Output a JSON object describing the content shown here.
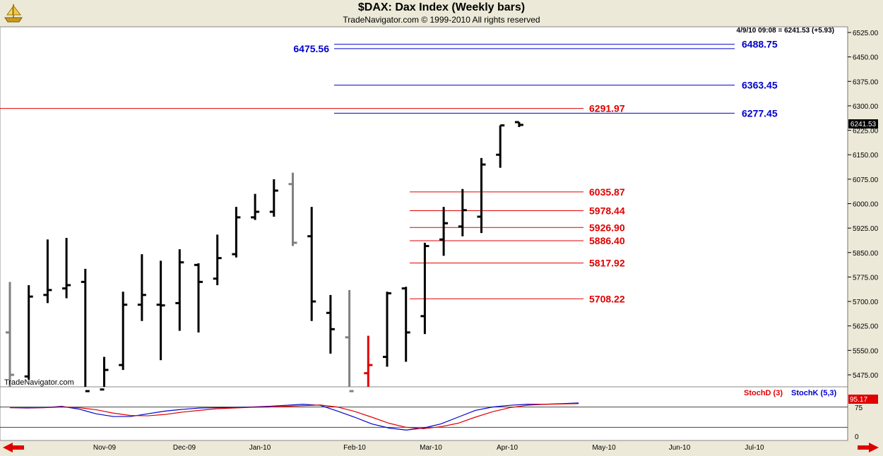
{
  "header": {
    "title": "$DAX:  Dax Index  (Weekly bars)",
    "subtitle": "TradeNavigator.com © 1999-2010 All rights reserved"
  },
  "quote": "4/9/10 09:08 = 6241.53 (+5.93)",
  "last_price": "6241.53",
  "watermark": "TradeNavigator.com",
  "indicator": {
    "stochD_label": "StochD (3)",
    "stochK_label": "StochK (5,3)",
    "last_value": "95.17",
    "ticks": [
      "75",
      "0"
    ],
    "levels": [
      80,
      20
    ],
    "stochK": [
      78,
      77,
      78,
      82,
      74,
      60,
      52,
      52,
      60,
      68,
      73,
      77,
      78,
      78,
      80,
      82,
      85,
      88,
      85,
      68,
      50,
      30,
      18,
      12,
      18,
      30,
      50,
      70,
      80,
      85,
      88,
      88,
      90,
      92
    ],
    "stochD": [
      78,
      78,
      78,
      80,
      78,
      72,
      62,
      55,
      54,
      58,
      65,
      70,
      75,
      77,
      79,
      80,
      82,
      84,
      86,
      80,
      67,
      50,
      32,
      20,
      16,
      22,
      32,
      50,
      66,
      78,
      85,
      88,
      89,
      90
    ]
  },
  "chart_data": {
    "type": "ohlc",
    "title": "$DAX:  Dax Index  (Weekly bars)",
    "ylim": [
      5425,
      6540
    ],
    "y_ticks": [
      "6525.00",
      "6450.00",
      "6375.00",
      "6300.00",
      "6225.00",
      "6150.00",
      "6075.00",
      "6000.00",
      "5925.00",
      "5850.00",
      "5775.00",
      "5700.00",
      "5625.00",
      "5550.00",
      "5475.00"
    ],
    "x_labels": [
      "Nov-09",
      "Dec-09",
      "Jan-10",
      "Feb-10",
      "Mar-10",
      "Apr-10",
      "May-10",
      "Jun-10",
      "Jul-10"
    ],
    "bars": [
      {
        "o": 5605,
        "h": 5760,
        "l": 5425,
        "c": 5475,
        "col": "gray"
      },
      {
        "o": 5470,
        "h": 5750,
        "l": 5460,
        "c": 5715,
        "col": "black"
      },
      {
        "o": 5720,
        "h": 5890,
        "l": 5695,
        "c": 5735,
        "col": "black"
      },
      {
        "o": 5740,
        "h": 5895,
        "l": 5710,
        "c": 5750,
        "col": "black"
      },
      {
        "o": 5760,
        "h": 5800,
        "l": 5425,
        "c": 5425,
        "col": "black"
      },
      {
        "o": 5430,
        "h": 5530,
        "l": 5425,
        "c": 5490,
        "col": "black"
      },
      {
        "o": 5505,
        "h": 5730,
        "l": 5490,
        "c": 5690,
        "col": "black"
      },
      {
        "o": 5690,
        "h": 5845,
        "l": 5640,
        "c": 5720,
        "col": "black"
      },
      {
        "o": 5690,
        "h": 5825,
        "l": 5520,
        "c": 5688,
        "col": "black"
      },
      {
        "o": 5695,
        "h": 5860,
        "l": 5610,
        "c": 5820,
        "col": "black"
      },
      {
        "o": 5812,
        "h": 5817,
        "l": 5605,
        "c": 5760,
        "col": "black"
      },
      {
        "o": 5770,
        "h": 5905,
        "l": 5750,
        "c": 5833,
        "col": "black"
      },
      {
        "o": 5845,
        "h": 5990,
        "l": 5835,
        "c": 5958,
        "col": "black"
      },
      {
        "o": 5958,
        "h": 6030,
        "l": 5950,
        "c": 5975,
        "col": "black"
      },
      {
        "o": 5975,
        "h": 6075,
        "l": 5960,
        "c": 6040,
        "col": "black"
      },
      {
        "o": 6060,
        "h": 6095,
        "l": 5870,
        "c": 5880,
        "col": "gray"
      },
      {
        "o": 5900,
        "h": 5990,
        "l": 5640,
        "c": 5700,
        "col": "black"
      },
      {
        "o": 5665,
        "h": 5720,
        "l": 5540,
        "c": 5615,
        "col": "black"
      },
      {
        "o": 5590,
        "h": 5735,
        "l": 5425,
        "c": 5425,
        "col": "gray"
      },
      {
        "o": 5480,
        "h": 5595,
        "l": 5425,
        "c": 5505,
        "col": "red"
      },
      {
        "o": 5530,
        "h": 5730,
        "l": 5500,
        "c": 5725,
        "col": "black"
      },
      {
        "o": 5740,
        "h": 5745,
        "l": 5515,
        "c": 5605,
        "col": "black"
      },
      {
        "o": 5655,
        "h": 5880,
        "l": 5600,
        "c": 5870,
        "col": "black"
      },
      {
        "o": 5890,
        "h": 5990,
        "l": 5840,
        "c": 5940,
        "col": "black"
      },
      {
        "o": 5930,
        "h": 6045,
        "l": 5900,
        "c": 5980,
        "col": "black"
      },
      {
        "o": 5960,
        "h": 6140,
        "l": 5910,
        "c": 6120,
        "col": "black"
      },
      {
        "o": 6150,
        "h": 6240,
        "l": 6110,
        "c": 6240,
        "col": "black"
      },
      {
        "o": 6250,
        "h": 6250,
        "l": 6235,
        "c": 6241.53,
        "col": "black"
      }
    ],
    "levels": [
      {
        "label": "6488.75",
        "value": 6488.75,
        "color": "blue"
      },
      {
        "label": "6475.56",
        "value": 6475.56,
        "color": "blue"
      },
      {
        "label": "6363.45",
        "value": 6363.45,
        "color": "blue"
      },
      {
        "label": "6277.45",
        "value": 6277.45,
        "color": "blue"
      },
      {
        "label": "6291.97",
        "value": 6291.97,
        "color": "red"
      },
      {
        "label": "6035.87",
        "value": 6035.87,
        "color": "red"
      },
      {
        "label": "5978.44",
        "value": 5978.44,
        "color": "red"
      },
      {
        "label": "5926.90",
        "value": 5926.9,
        "color": "red"
      },
      {
        "label": "5886.40",
        "value": 5886.4,
        "color": "red"
      },
      {
        "label": "5817.92",
        "value": 5817.92,
        "color": "red"
      },
      {
        "label": "5708.22",
        "value": 5708.22,
        "color": "red"
      }
    ]
  }
}
